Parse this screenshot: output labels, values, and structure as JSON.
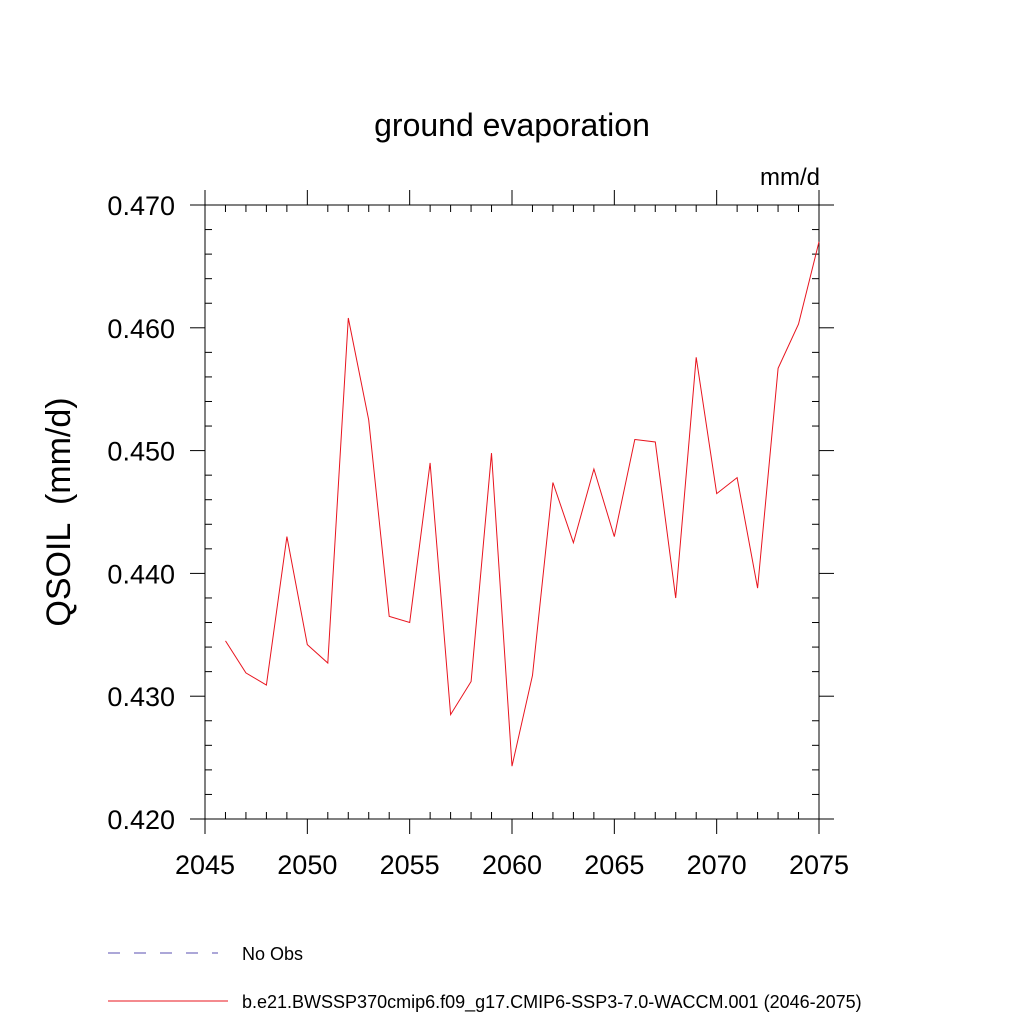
{
  "chart_data": {
    "type": "line",
    "title": "ground evaporation",
    "units": "mm/d",
    "ylabel": "QSOIL  (mm/d)",
    "xlabel": "",
    "xlim": [
      2045,
      2075
    ],
    "ylim": [
      0.42,
      0.47
    ],
    "x_ticks": [
      2045,
      2050,
      2055,
      2060,
      2065,
      2070,
      2075
    ],
    "x_tick_labels": [
      "2045",
      "2050",
      "2055",
      "2060",
      "2065",
      "2070",
      "2075"
    ],
    "x_minor_step": 1,
    "y_ticks": [
      0.42,
      0.43,
      0.44,
      0.45,
      0.46,
      0.47
    ],
    "y_tick_labels": [
      "0.420",
      "0.430",
      "0.440",
      "0.450",
      "0.460",
      "0.470"
    ],
    "y_minor_step": 0.002,
    "grid": false,
    "legend": [
      {
        "label": "No Obs",
        "color": "#5a4fb0",
        "style": "dashed"
      },
      {
        "label": "b.e21.BWSSP370cmip6.f09_g17.CMIP6-SSP3-7.0-WACCM.001 (2046-2075)",
        "color": "#e8141e",
        "style": "solid"
      }
    ],
    "series": [
      {
        "name": "b.e21.BWSSP370cmip6.f09_g17.CMIP6-SSP3-7.0-WACCM.001 (2046-2075)",
        "color": "#e8141e",
        "x": [
          2046,
          2047,
          2048,
          2049,
          2050,
          2051,
          2052,
          2053,
          2054,
          2055,
          2056,
          2057,
          2058,
          2059,
          2060,
          2061,
          2062,
          2063,
          2064,
          2065,
          2066,
          2067,
          2068,
          2069,
          2070,
          2071,
          2072,
          2073,
          2074,
          2075
        ],
        "values": [
          0.4345,
          0.4319,
          0.4309,
          0.443,
          0.4342,
          0.4327,
          0.4608,
          0.4525,
          0.4365,
          0.436,
          0.449,
          0.4285,
          0.4312,
          0.4498,
          0.4243,
          0.4317,
          0.4474,
          0.4425,
          0.4485,
          0.443,
          0.4509,
          0.4507,
          0.438,
          0.4576,
          0.4465,
          0.4478,
          0.4388,
          0.4567,
          0.4603,
          0.467
        ]
      }
    ]
  }
}
